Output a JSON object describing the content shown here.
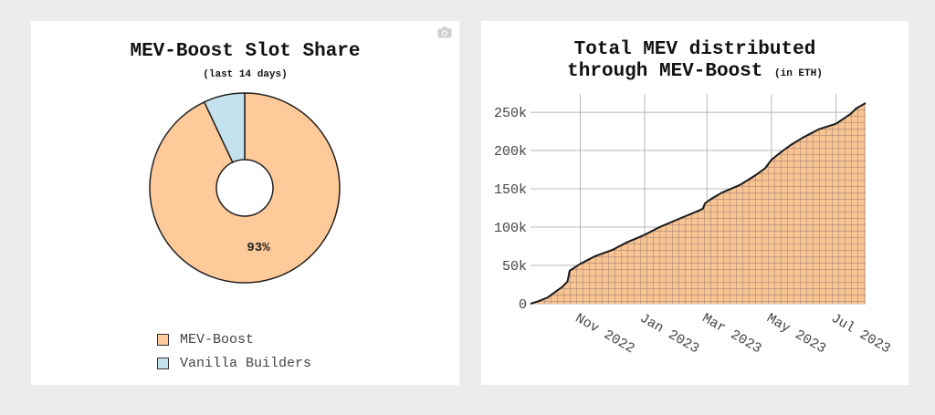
{
  "colors": {
    "mev_boost": "#ffca99",
    "vanilla": "#c4e2ee",
    "area_fill": "#f7c492",
    "grid": "#b8b8bd",
    "line": "#1a1a1a"
  },
  "left": {
    "title": "MEV-Boost Slot Share",
    "subtitle": "(last 14 days)",
    "camera_icon": "camera-icon"
  },
  "right": {
    "title_line1": "Total MEV distributed",
    "title_line2": "through MEV-Boost",
    "title_unit": "(in ETH)"
  },
  "chart_data": [
    {
      "type": "pie",
      "hole": true,
      "labels": [
        "MEV-Boost",
        "Vanilla Builders"
      ],
      "values": [
        93,
        7
      ],
      "data_labels": [
        "93%",
        ""
      ],
      "title": "MEV-Boost Slot Share",
      "subtitle": "(last 14 days)",
      "legend": "bottom"
    },
    {
      "type": "area",
      "title": "Total MEV distributed through MEV-Boost (in ETH)",
      "xlabel": "",
      "ylabel": "",
      "ylim": [
        0,
        262000
      ],
      "yticks": [
        0,
        50000,
        100000,
        150000,
        200000,
        250000
      ],
      "ytick_labels": [
        "0",
        "50k",
        "100k",
        "150k",
        "200k",
        "250k"
      ],
      "xticks": [
        "2022-11-01",
        "2023-01-01",
        "2023-03-01",
        "2023-05-01",
        "2023-07-01"
      ],
      "xtick_labels": [
        "Nov 2022",
        "Jan 2023",
        "Mar 2023",
        "May 2023",
        "Jul 2023"
      ],
      "xlim": [
        "2022-09-15",
        "2023-07-29"
      ],
      "grid": true,
      "x": [
        "2022-09-15",
        "2022-09-22",
        "2022-10-01",
        "2022-10-08",
        "2022-10-15",
        "2022-10-20",
        "2022-10-22",
        "2022-11-01",
        "2022-11-15",
        "2022-12-01",
        "2022-12-15",
        "2023-01-01",
        "2023-01-15",
        "2023-02-01",
        "2023-02-15",
        "2023-02-25",
        "2023-02-27",
        "2023-03-05",
        "2023-03-15",
        "2023-04-01",
        "2023-04-15",
        "2023-04-25",
        "2023-05-01",
        "2023-05-10",
        "2023-05-20",
        "2023-06-01",
        "2023-06-15",
        "2023-07-01",
        "2023-07-15",
        "2023-07-20",
        "2023-07-29"
      ],
      "y": [
        0,
        3000,
        8000,
        15000,
        22000,
        29000,
        43000,
        52000,
        62000,
        70000,
        80000,
        90000,
        100000,
        110000,
        118000,
        124000,
        131000,
        137000,
        145000,
        155000,
        167000,
        177000,
        188000,
        198000,
        208000,
        218000,
        228000,
        235000,
        248000,
        255000,
        262000
      ]
    }
  ]
}
